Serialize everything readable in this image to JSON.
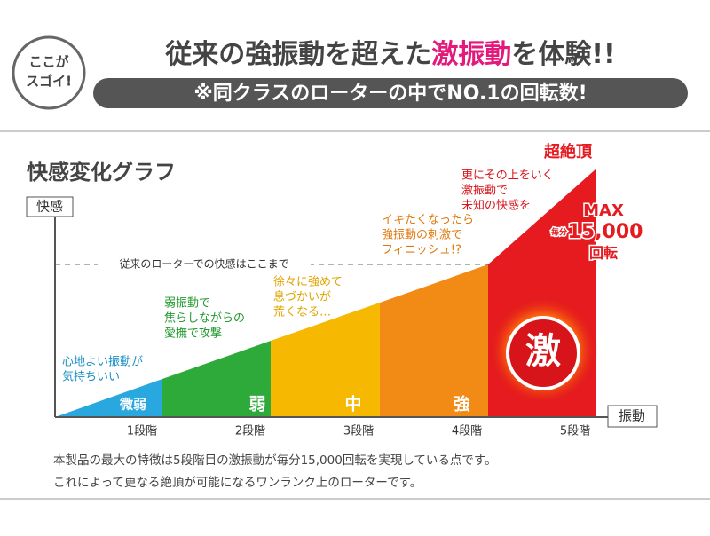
{
  "header": {
    "badge": [
      "ここが",
      "スゴイ!"
    ],
    "headline": [
      "従来の強振動を超えた",
      "激振動",
      "を体験!!"
    ],
    "subheadline": "※同クラスのローターの中でNO.1の回転数!"
  },
  "graph": {
    "title": "快感変化グラフ",
    "y_label": "快感",
    "x_label": "振動",
    "threshold_label": "従来のローターでの快感はここまで",
    "stages": [
      {
        "name": "微弱",
        "step": "1段階",
        "note": [
          "心地よい振動が",
          "気持ちいい"
        ]
      },
      {
        "name": "弱",
        "step": "2段階",
        "note": [
          "弱振動で",
          "焦らしながらの",
          "愛撫で攻撃"
        ]
      },
      {
        "name": "中",
        "step": "3段階",
        "note": [
          "徐々に強めて",
          "息づかいが",
          "荒くなる…"
        ]
      },
      {
        "name": "強",
        "step": "4段階",
        "note": [
          "イキたくなったら",
          "強振動の刺激で",
          "フィニッシュ!?"
        ]
      },
      {
        "name": "激",
        "step": "5段階",
        "note": [
          "更にその上をいく",
          "激振動で",
          "未知の快感を"
        ]
      }
    ],
    "peak_label": "超絶頂",
    "max": {
      "label": "MAX",
      "per": "毎分",
      "rpm": "15,000",
      "unit": "回転"
    }
  },
  "footer": [
    "本製品の最大の特徴は5段階目の激振動が毎分15,000回転を実現している点です。",
    "これによって更なる絶頂が可能になるワンランク上のローターです。"
  ]
}
